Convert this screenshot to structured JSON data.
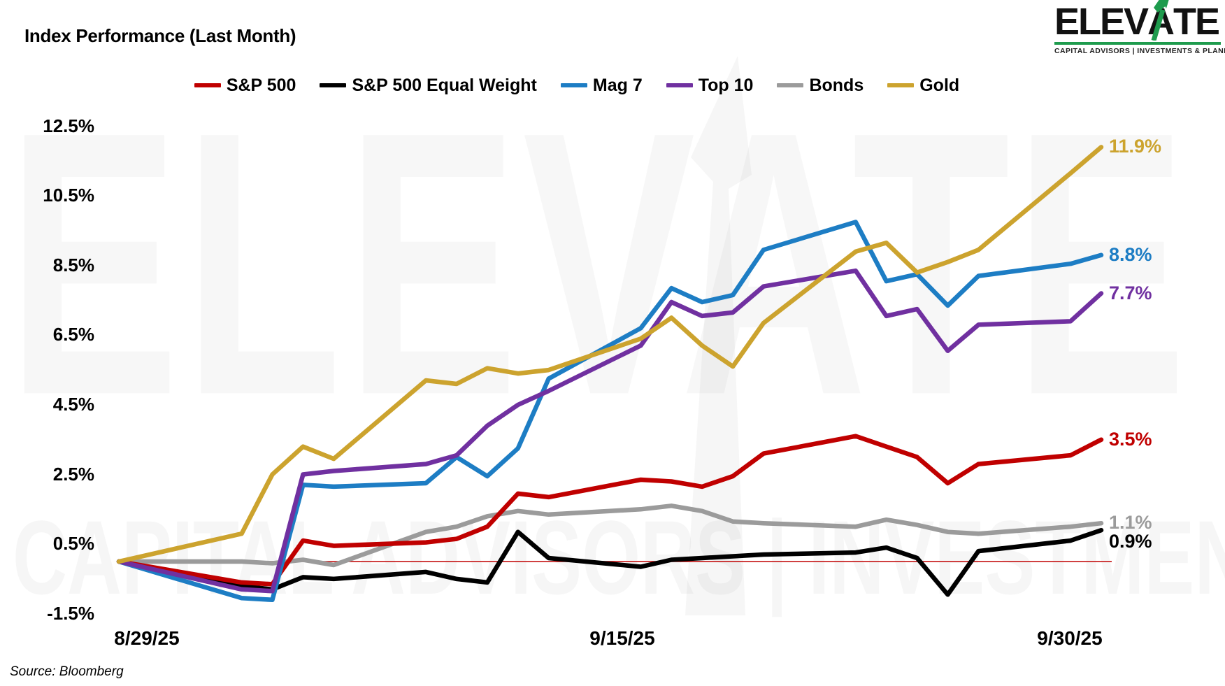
{
  "title": "Index Performance (Last Month)",
  "source_note": "Source: Bloomberg",
  "logo": {
    "brand_left": "ELEV",
    "brand_a": "A",
    "brand_right": "TE",
    "tagline": "CAPITAL ADVISORS | INVESTMENTS & PLANNING",
    "accent_green": "#1E9B4D"
  },
  "watermark": {
    "brand": "ELEVATE",
    "tagline": "CAPITAL ADVISORS | INVESTMENTS & PLANNING"
  },
  "chart_data": {
    "type": "line",
    "title": "Index Performance (Last Month)",
    "grid": "off",
    "legend_position": "top",
    "zero_line_color": "#C00000",
    "ylim": [
      -1.5,
      12.5
    ],
    "y_axis_tick_labels": [
      "12.5%",
      "10.5%",
      "8.5%",
      "6.5%",
      "4.5%",
      "2.5%",
      "0.5%",
      "-1.5%"
    ],
    "y_axis_tick_values": [
      12.5,
      10.5,
      8.5,
      6.5,
      4.5,
      2.5,
      0.5,
      -1.5
    ],
    "x_axis_tick_labels": [
      "8/29/25",
      "9/15/25",
      "9/30/25"
    ],
    "x_dates": [
      "8/29/25",
      "9/2/25",
      "9/3/25",
      "9/4/25",
      "9/5/25",
      "9/8/25",
      "9/9/25",
      "9/10/25",
      "9/11/25",
      "9/12/25",
      "9/15/25",
      "9/16/25",
      "9/17/25",
      "9/18/25",
      "9/19/25",
      "9/22/25",
      "9/23/25",
      "9/24/25",
      "9/25/25",
      "9/26/25",
      "9/29/25",
      "9/30/25"
    ],
    "series": [
      {
        "name": "S&P 500",
        "color": "#C00000",
        "end_label": "3.5%",
        "values": [
          0,
          -0.6,
          -0.65,
          0.6,
          0.45,
          0.55,
          0.65,
          1.0,
          1.95,
          1.85,
          2.35,
          2.3,
          2.15,
          2.45,
          3.1,
          3.6,
          3.3,
          3.0,
          2.25,
          2.8,
          3.05,
          3.5
        ]
      },
      {
        "name": "S&P 500 Equal Weight",
        "color": "#000000",
        "end_label": "0.9%",
        "values": [
          0,
          -0.7,
          -0.8,
          -0.45,
          -0.5,
          -0.3,
          -0.5,
          -0.6,
          0.85,
          0.1,
          -0.15,
          0.05,
          0.1,
          0.15,
          0.2,
          0.26,
          0.4,
          0.1,
          -0.95,
          0.3,
          0.6,
          0.9
        ]
      },
      {
        "name": "Mag 7",
        "color": "#1D7DC4",
        "end_label": "8.8%",
        "values": [
          0,
          -1.05,
          -1.1,
          2.2,
          2.15,
          2.25,
          3.0,
          2.45,
          3.25,
          5.25,
          6.7,
          7.85,
          7.45,
          7.65,
          8.95,
          9.75,
          8.05,
          8.25,
          7.35,
          8.2,
          8.55,
          8.8
        ]
      },
      {
        "name": "Top 10",
        "color": "#7030A0",
        "end_label": "7.7%",
        "values": [
          0,
          -0.8,
          -0.85,
          2.5,
          2.6,
          2.8,
          3.05,
          3.9,
          4.5,
          4.9,
          6.2,
          7.45,
          7.05,
          7.15,
          7.9,
          8.35,
          7.05,
          7.25,
          6.05,
          6.8,
          6.9,
          7.7
        ]
      },
      {
        "name": "Bonds",
        "color": "#9B9B9B",
        "end_label": "1.1%",
        "values": [
          0,
          0.0,
          -0.05,
          0.05,
          -0.1,
          0.85,
          1.0,
          1.3,
          1.45,
          1.35,
          1.5,
          1.6,
          1.45,
          1.15,
          1.1,
          1.0,
          1.2,
          1.05,
          0.85,
          0.8,
          1.0,
          1.1
        ]
      },
      {
        "name": "Gold",
        "color": "#CCA32E",
        "end_label": "11.9%",
        "values": [
          0,
          0.8,
          2.5,
          3.3,
          2.95,
          5.2,
          5.1,
          5.55,
          5.4,
          5.5,
          6.4,
          7.0,
          6.2,
          5.6,
          6.85,
          8.9,
          9.15,
          8.3,
          8.6,
          8.95,
          11.15,
          11.9
        ]
      }
    ]
  }
}
